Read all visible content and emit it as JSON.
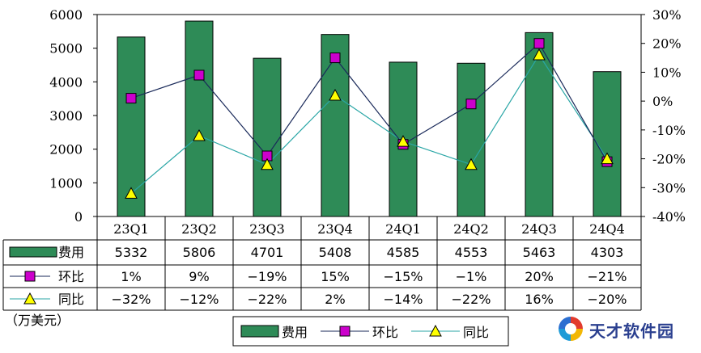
{
  "chart_data": {
    "type": "bar",
    "categories": [
      "23Q1",
      "23Q2",
      "23Q3",
      "23Q4",
      "24Q1",
      "24Q2",
      "24Q3",
      "24Q4"
    ],
    "series": [
      {
        "name": "费用",
        "kind": "bar",
        "axis": "left",
        "color": "#2e8b57",
        "values": [
          5332,
          5806,
          4701,
          5408,
          4585,
          4553,
          5463,
          4303
        ]
      },
      {
        "name": "环比",
        "kind": "line",
        "axis": "right",
        "color": "#cc00cc",
        "values": [
          1,
          9,
          -19,
          15,
          -15,
          -1,
          20,
          -21
        ]
      },
      {
        "name": "同比",
        "kind": "line",
        "axis": "right",
        "color": "#ffff00",
        "values": [
          -32,
          -12,
          -22,
          2,
          -14,
          -22,
          16,
          -20
        ]
      }
    ],
    "y_left": {
      "ylim": [
        0,
        6000
      ],
      "ticks": [
        "0",
        "1000",
        "2000",
        "3000",
        "4000",
        "5000",
        "6000"
      ]
    },
    "y_right": {
      "ylim": [
        -40,
        30
      ],
      "ticks": [
        "-40%",
        "-30%",
        "-20%",
        "-10%",
        "0%",
        "10%",
        "20%",
        "30%"
      ]
    },
    "table_rows": [
      {
        "label": "费用",
        "values": [
          "5332",
          "5806",
          "4701",
          "5408",
          "4585",
          "4553",
          "5463",
          "4303"
        ]
      },
      {
        "label": "环比",
        "values": [
          "1%",
          "9%",
          "−19%",
          "15%",
          "−15%",
          "−1%",
          "20%",
          "−21%"
        ]
      },
      {
        "label": "同比",
        "values": [
          "−32%",
          "−12%",
          "−22%",
          "2%",
          "−14%",
          "−22%",
          "16%",
          "−20%"
        ]
      }
    ],
    "unit_note": "（万美元）",
    "legend": [
      "费用",
      "环比",
      "同比"
    ],
    "legend_position": "bottom",
    "grid": false
  },
  "watermark": {
    "text": "天才软件园"
  }
}
